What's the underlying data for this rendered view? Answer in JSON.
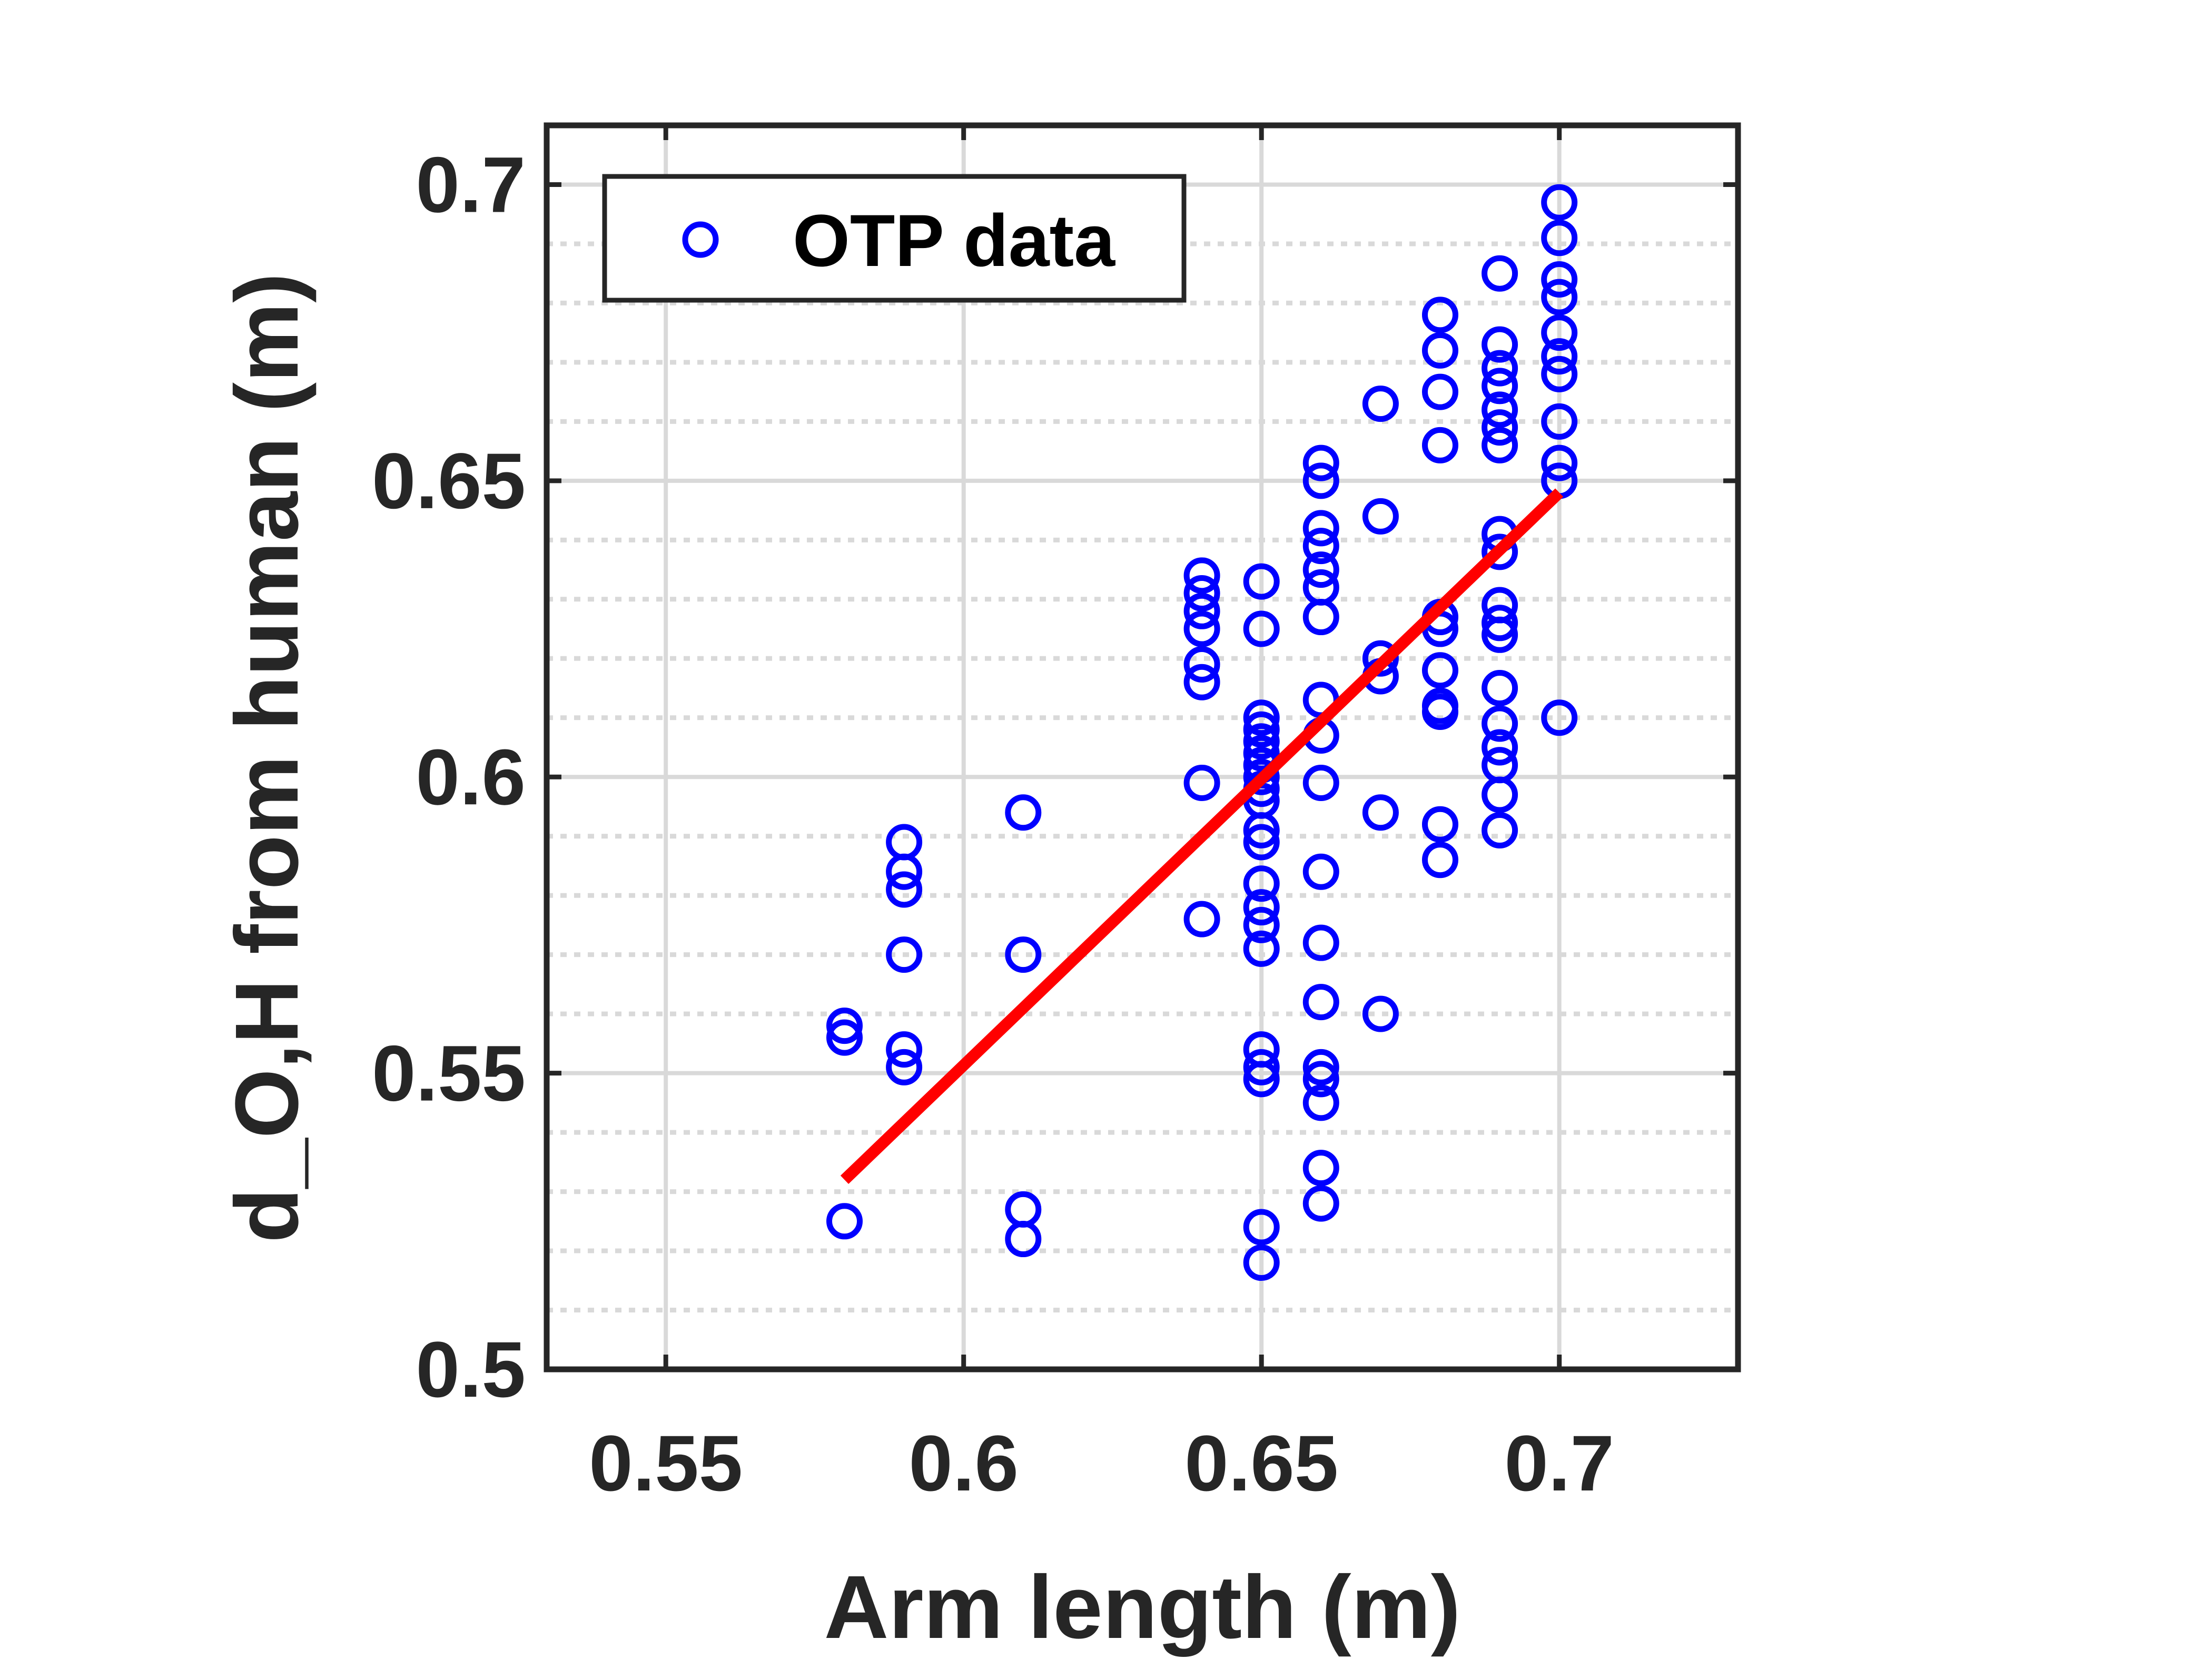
{
  "chart_data": {
    "type": "scatter",
    "xlabel": "Arm length (m)",
    "ylabel": "d_O,H from human (m)",
    "xlim": [
      0.53,
      0.73
    ],
    "ylim": [
      0.5,
      0.71
    ],
    "x_ticks": [
      0.55,
      0.6,
      0.65,
      0.7
    ],
    "y_ticks": [
      0.5,
      0.55,
      0.6,
      0.65,
      0.7
    ],
    "x_tick_labels": [
      "0.55",
      "0.6",
      "0.65",
      "0.7"
    ],
    "y_tick_labels": [
      "0.5",
      "0.55",
      "0.6",
      "0.65",
      "0.7"
    ],
    "y_minor_step": 0.01,
    "grid": true,
    "legend": {
      "position": "top-left",
      "entries": [
        "OTP data"
      ]
    },
    "colors": {
      "points": "#0000ff",
      "fit": "#ff0000",
      "axes": "#262626",
      "grid": "#d9d9d9"
    },
    "series": [
      {
        "name": "OTP data",
        "points": [
          [
            0.58,
            0.558
          ],
          [
            0.58,
            0.556
          ],
          [
            0.58,
            0.525
          ],
          [
            0.59,
            0.589
          ],
          [
            0.59,
            0.584
          ],
          [
            0.59,
            0.581
          ],
          [
            0.59,
            0.57
          ],
          [
            0.59,
            0.554
          ],
          [
            0.59,
            0.551
          ],
          [
            0.61,
            0.594
          ],
          [
            0.61,
            0.57
          ],
          [
            0.61,
            0.527
          ],
          [
            0.61,
            0.522
          ],
          [
            0.64,
            0.634
          ],
          [
            0.64,
            0.631
          ],
          [
            0.64,
            0.628
          ],
          [
            0.64,
            0.625
          ],
          [
            0.64,
            0.619
          ],
          [
            0.64,
            0.616
          ],
          [
            0.64,
            0.599
          ],
          [
            0.64,
            0.576
          ],
          [
            0.65,
            0.633
          ],
          [
            0.65,
            0.625
          ],
          [
            0.65,
            0.61
          ],
          [
            0.65,
            0.608
          ],
          [
            0.65,
            0.606
          ],
          [
            0.65,
            0.604
          ],
          [
            0.65,
            0.602
          ],
          [
            0.65,
            0.6
          ],
          [
            0.65,
            0.598
          ],
          [
            0.65,
            0.596
          ],
          [
            0.65,
            0.591
          ],
          [
            0.65,
            0.589
          ],
          [
            0.65,
            0.582
          ],
          [
            0.65,
            0.578
          ],
          [
            0.65,
            0.575
          ],
          [
            0.65,
            0.571
          ],
          [
            0.65,
            0.554
          ],
          [
            0.65,
            0.551
          ],
          [
            0.65,
            0.549
          ],
          [
            0.65,
            0.524
          ],
          [
            0.65,
            0.518
          ],
          [
            0.66,
            0.653
          ],
          [
            0.66,
            0.65
          ],
          [
            0.66,
            0.642
          ],
          [
            0.66,
            0.639
          ],
          [
            0.66,
            0.635
          ],
          [
            0.66,
            0.632
          ],
          [
            0.66,
            0.627
          ],
          [
            0.66,
            0.613
          ],
          [
            0.66,
            0.607
          ],
          [
            0.66,
            0.599
          ],
          [
            0.66,
            0.584
          ],
          [
            0.66,
            0.572
          ],
          [
            0.66,
            0.562
          ],
          [
            0.66,
            0.551
          ],
          [
            0.66,
            0.549
          ],
          [
            0.66,
            0.545
          ],
          [
            0.66,
            0.534
          ],
          [
            0.66,
            0.528
          ],
          [
            0.67,
            0.663
          ],
          [
            0.67,
            0.644
          ],
          [
            0.67,
            0.62
          ],
          [
            0.67,
            0.617
          ],
          [
            0.67,
            0.594
          ],
          [
            0.67,
            0.56
          ],
          [
            0.68,
            0.678
          ],
          [
            0.68,
            0.672
          ],
          [
            0.68,
            0.665
          ],
          [
            0.68,
            0.656
          ],
          [
            0.68,
            0.627
          ],
          [
            0.68,
            0.625
          ],
          [
            0.68,
            0.618
          ],
          [
            0.68,
            0.612
          ],
          [
            0.68,
            0.611
          ],
          [
            0.68,
            0.592
          ],
          [
            0.68,
            0.586
          ],
          [
            0.69,
            0.685
          ],
          [
            0.69,
            0.673
          ],
          [
            0.69,
            0.669
          ],
          [
            0.69,
            0.666
          ],
          [
            0.69,
            0.662
          ],
          [
            0.69,
            0.659
          ],
          [
            0.69,
            0.656
          ],
          [
            0.69,
            0.641
          ],
          [
            0.69,
            0.638
          ],
          [
            0.69,
            0.629
          ],
          [
            0.69,
            0.626
          ],
          [
            0.69,
            0.624
          ],
          [
            0.69,
            0.615
          ],
          [
            0.69,
            0.609
          ],
          [
            0.69,
            0.605
          ],
          [
            0.69,
            0.602
          ],
          [
            0.69,
            0.597
          ],
          [
            0.69,
            0.591
          ],
          [
            0.7,
            0.697
          ],
          [
            0.7,
            0.691
          ],
          [
            0.7,
            0.684
          ],
          [
            0.7,
            0.681
          ],
          [
            0.7,
            0.675
          ],
          [
            0.7,
            0.671
          ],
          [
            0.7,
            0.668
          ],
          [
            0.7,
            0.66
          ],
          [
            0.7,
            0.653
          ],
          [
            0.7,
            0.65
          ],
          [
            0.7,
            0.61
          ]
        ]
      },
      {
        "type": "line",
        "x": [
          0.58,
          0.7
        ],
        "y": [
          0.532,
          0.648
        ]
      }
    ]
  }
}
